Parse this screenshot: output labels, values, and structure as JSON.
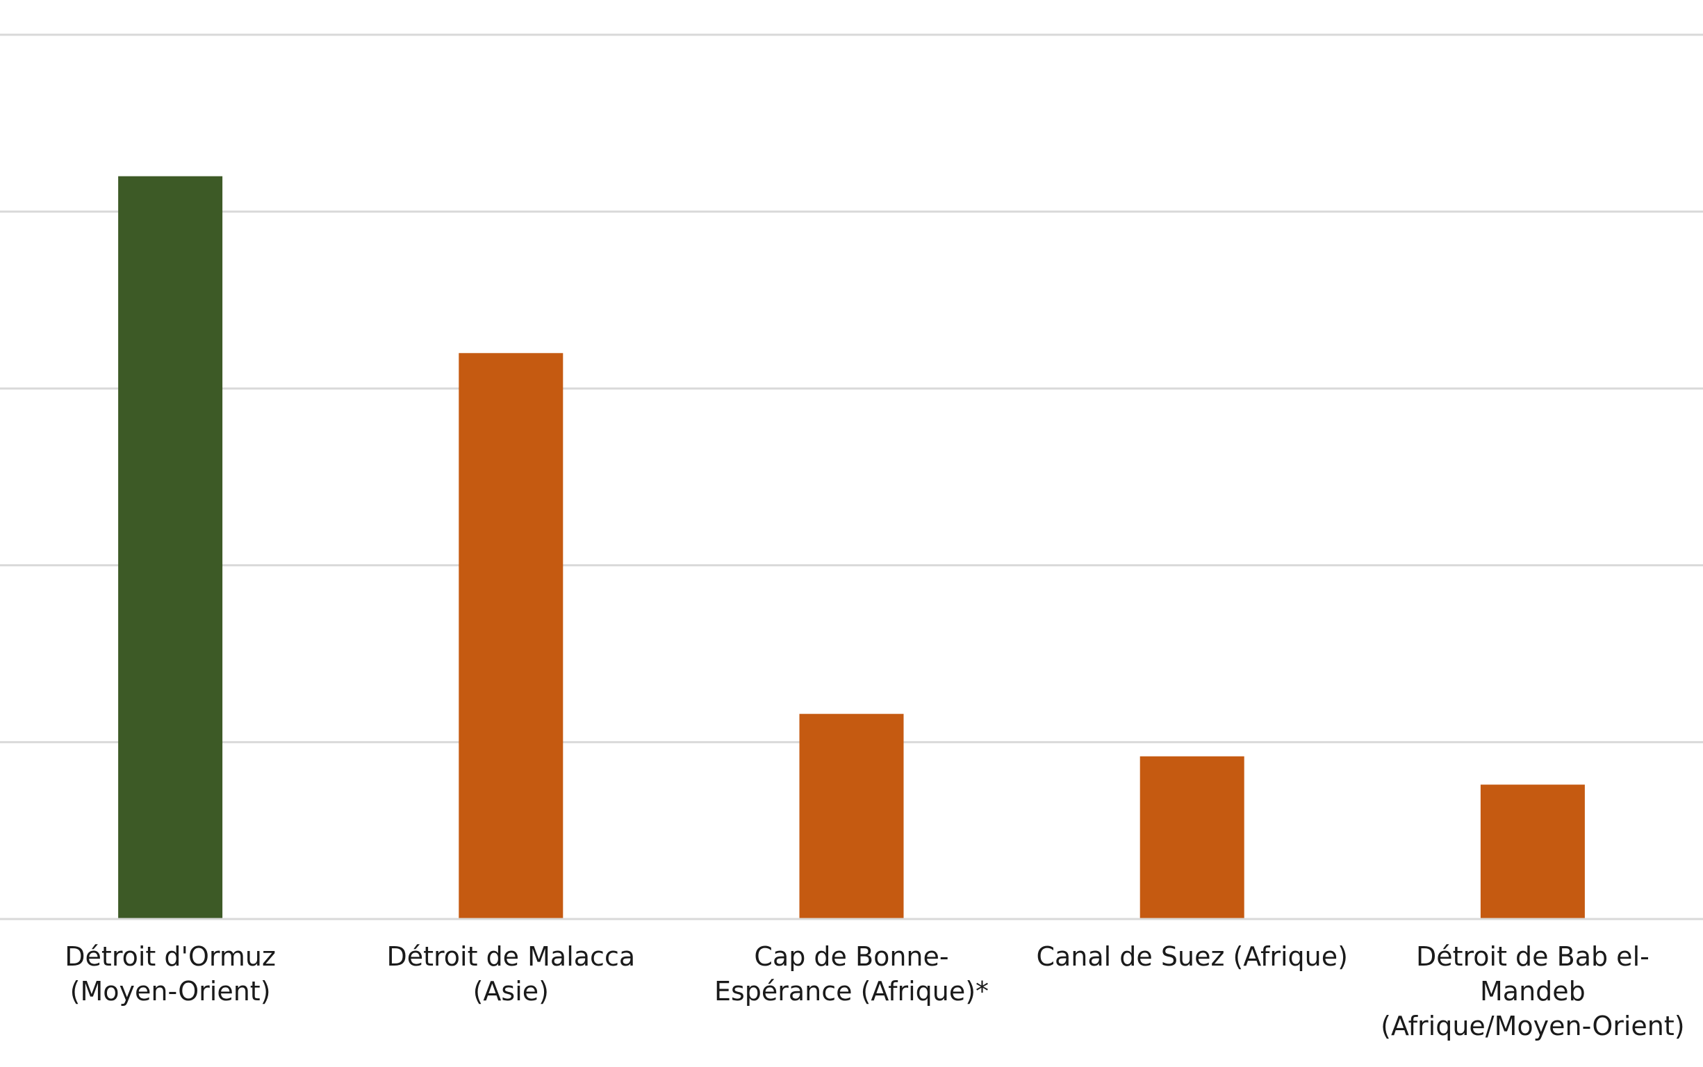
{
  "chart_data": {
    "type": "bar",
    "title": "",
    "xlabel": "",
    "ylabel": "",
    "ylim": [
      0,
      25
    ],
    "y_gridlines": [
      0,
      5,
      10,
      15,
      20,
      25
    ],
    "grid": "horizontal",
    "y_tick_labels_visible": false,
    "legend": "none",
    "categories": [
      "Détroit d'Ormuz (Moyen-Orient)",
      "Détroit de Malacca (Asie)",
      "Cap de Bonne-Espérance (Afrique)*",
      "Canal de Suez (Afrique)",
      "Détroit de Bab el-Mandeb (Afrique/Moyen-Orient)"
    ],
    "category_label_lines": [
      [
        "Détroit d'Ormuz",
        "(Moyen-Orient)"
      ],
      [
        "Détroit de Malacca",
        "(Asie)"
      ],
      [
        "Cap de Bonne-",
        "Espérance (Afrique)*"
      ],
      [
        "Canal de Suez (Afrique)"
      ],
      [
        "Détroit de Bab el-",
        "Mandeb",
        "(Afrique/Moyen-Orient)"
      ]
    ],
    "values": [
      21.0,
      16.0,
      5.8,
      4.6,
      3.8
    ],
    "bar_colors": [
      "#3d5a26",
      "#c55a11",
      "#c55a11",
      "#c55a11",
      "#c55a11"
    ],
    "gridline_color": "#d9d9d9",
    "baseline_color": "#d9d9d9",
    "label_color": "#1a1a1a"
  }
}
